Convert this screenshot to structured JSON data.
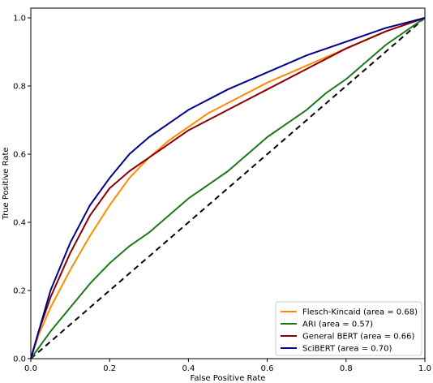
{
  "chart_data": {
    "type": "line",
    "title": "",
    "xlabel": "False Positive Rate",
    "ylabel": "True Positive Rate",
    "xlim": [
      0.0,
      1.0
    ],
    "ylim": [
      0.0,
      1.0
    ],
    "xticks": [
      "0.0",
      "0.2",
      "0.4",
      "0.6",
      "0.8",
      "1.0"
    ],
    "yticks": [
      "0.0",
      "0.2",
      "0.4",
      "0.6",
      "0.8",
      "1.0"
    ],
    "grid": false,
    "legend_position": "lower-right",
    "reference_line": {
      "x": [
        0,
        1
      ],
      "y": [
        0,
        1
      ],
      "color": "#000000",
      "style": "dashed"
    },
    "series": [
      {
        "name": "Flesch-Kincaid (area = 0.68)",
        "color": "#ff8c00",
        "x": [
          0,
          0.02,
          0.05,
          0.1,
          0.15,
          0.2,
          0.25,
          0.3,
          0.35,
          0.4,
          0.45,
          0.5,
          0.55,
          0.6,
          0.7,
          0.8,
          0.9,
          1.0
        ],
        "y": [
          0,
          0.07,
          0.15,
          0.26,
          0.36,
          0.45,
          0.53,
          0.59,
          0.64,
          0.68,
          0.72,
          0.75,
          0.78,
          0.81,
          0.86,
          0.91,
          0.96,
          1.0
        ]
      },
      {
        "name": "ARI (area = 0.57)",
        "color": "#1a7a1a",
        "x": [
          0,
          0.05,
          0.1,
          0.15,
          0.2,
          0.25,
          0.3,
          0.35,
          0.4,
          0.45,
          0.5,
          0.55,
          0.6,
          0.65,
          0.7,
          0.75,
          0.8,
          0.85,
          0.9,
          0.95,
          1.0
        ],
        "y": [
          0,
          0.08,
          0.15,
          0.22,
          0.28,
          0.33,
          0.37,
          0.42,
          0.47,
          0.51,
          0.55,
          0.6,
          0.65,
          0.69,
          0.73,
          0.78,
          0.82,
          0.87,
          0.92,
          0.96,
          1.0
        ]
      },
      {
        "name": "General BERT (area = 0.66)",
        "color": "#8b0000",
        "x": [
          0,
          0.02,
          0.05,
          0.1,
          0.15,
          0.2,
          0.25,
          0.3,
          0.35,
          0.4,
          0.45,
          0.5,
          0.6,
          0.7,
          0.8,
          0.9,
          0.95,
          1.0
        ],
        "y": [
          0,
          0.08,
          0.18,
          0.31,
          0.42,
          0.5,
          0.55,
          0.59,
          0.63,
          0.67,
          0.7,
          0.73,
          0.79,
          0.85,
          0.91,
          0.96,
          0.98,
          1.0
        ]
      },
      {
        "name": "SciBERT (area = 0.70)",
        "color": "#00008b",
        "x": [
          0,
          0.02,
          0.05,
          0.1,
          0.15,
          0.2,
          0.25,
          0.3,
          0.35,
          0.4,
          0.45,
          0.5,
          0.6,
          0.7,
          0.8,
          0.9,
          1.0
        ],
        "y": [
          0,
          0.08,
          0.2,
          0.34,
          0.45,
          0.53,
          0.6,
          0.65,
          0.69,
          0.73,
          0.76,
          0.79,
          0.84,
          0.89,
          0.93,
          0.97,
          1.0
        ]
      }
    ]
  }
}
